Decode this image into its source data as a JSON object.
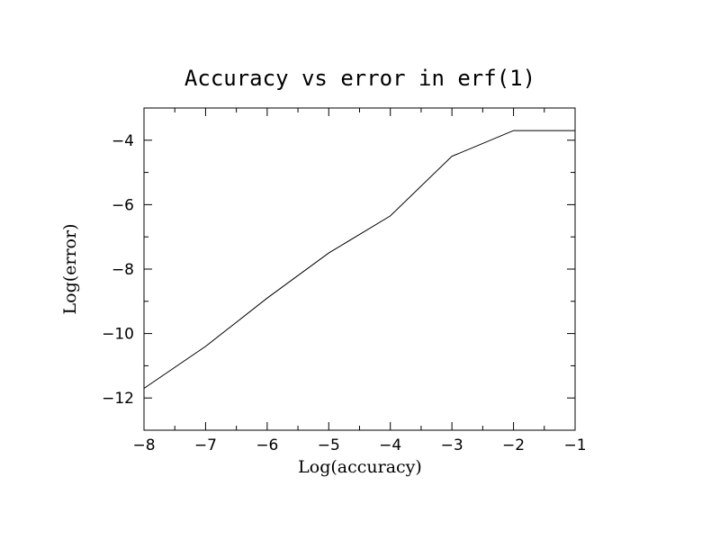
{
  "chart_data": {
    "type": "line",
    "title": "Accuracy vs error in erf(1)",
    "xlabel": "Log(accuracy)",
    "ylabel": "Log(error)",
    "xlim": [
      -8,
      -1
    ],
    "ylim": [
      -13,
      -3
    ],
    "x_ticks": [
      -8,
      -7,
      -6,
      -5,
      -4,
      -3,
      -2,
      -1
    ],
    "x_tick_labels": [
      "−8",
      "−7",
      "−6",
      "−5",
      "−4",
      "−3",
      "−2",
      "−1"
    ],
    "y_ticks": [
      -12,
      -10,
      -8,
      -6,
      -4
    ],
    "y_tick_labels": [
      "−12",
      "−10",
      "−8",
      "−6",
      "−4"
    ],
    "grid": false,
    "series": [
      {
        "x": [
          -8,
          -7,
          -6,
          -5,
          -4,
          -3,
          -2,
          -1
        ],
        "y": [
          -11.7,
          -10.4,
          -8.9,
          -7.5,
          -6.35,
          -4.5,
          -3.7,
          -3.7
        ]
      }
    ]
  }
}
